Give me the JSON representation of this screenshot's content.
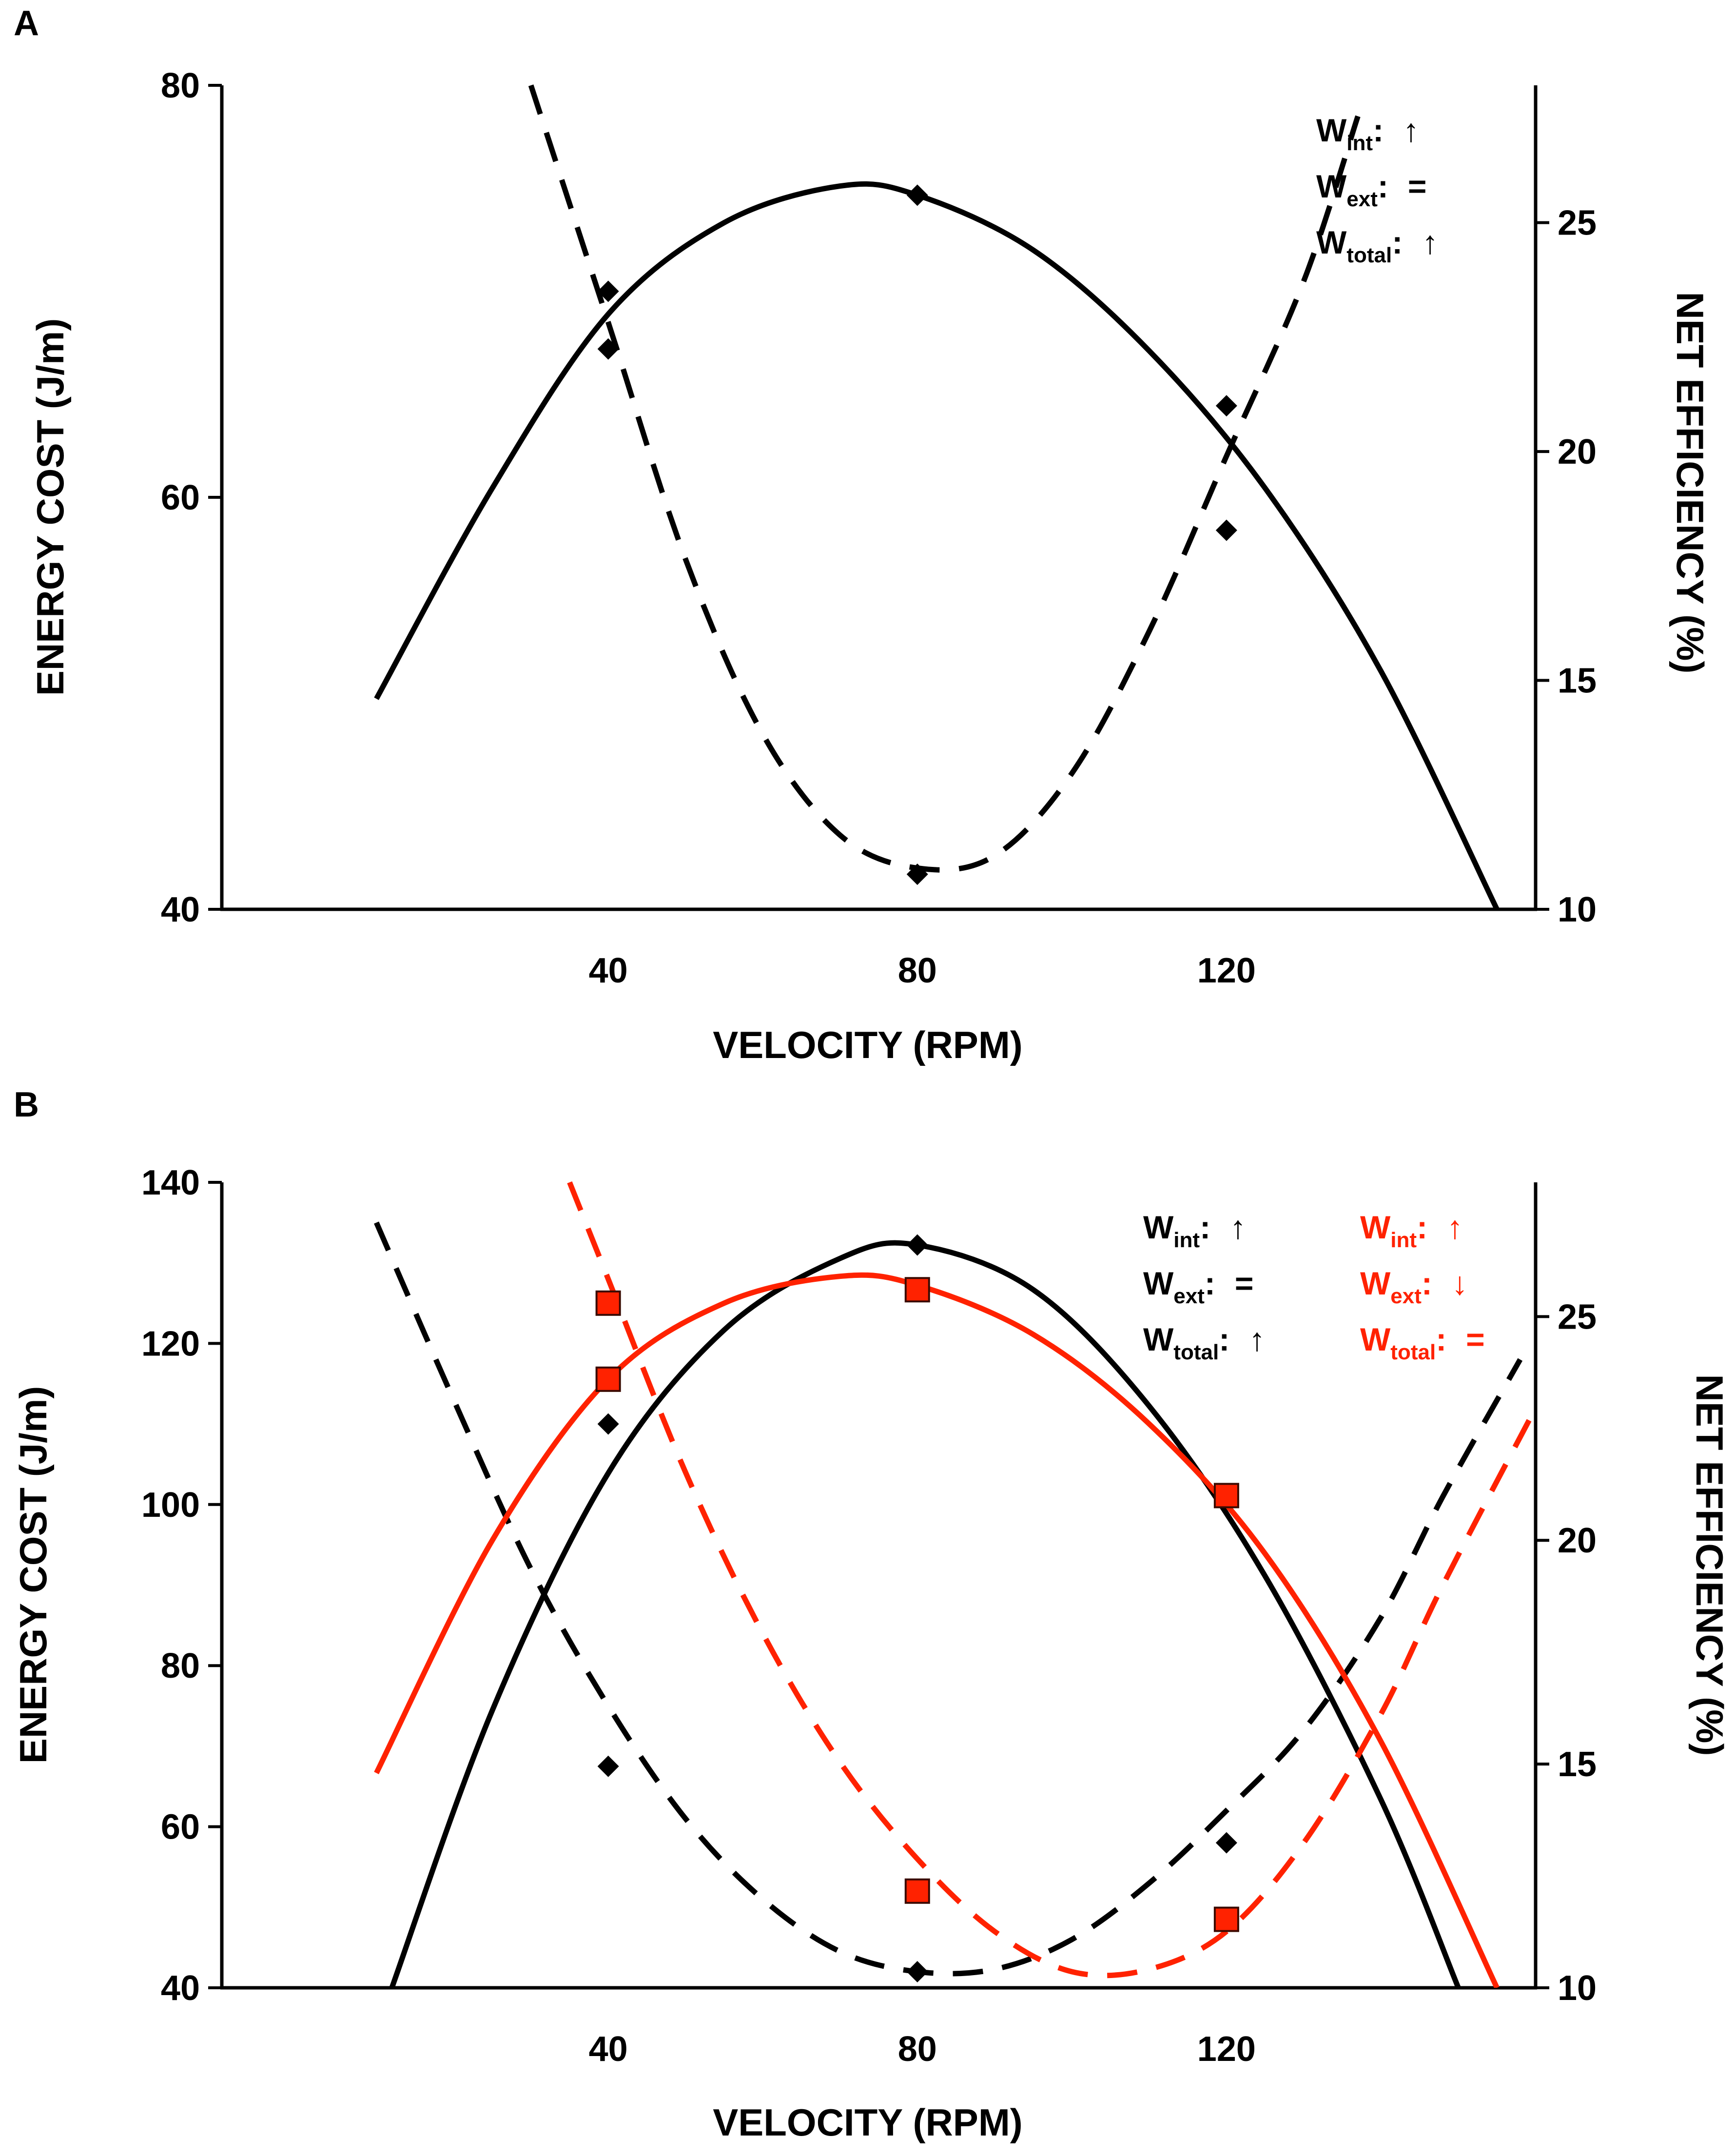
{
  "figure": {
    "panels": [
      "A",
      "B"
    ]
  },
  "chart_data": [
    {
      "panel": "A",
      "type": "line",
      "xlabel": "VELOCITY (RPM)",
      "ylabel": "ENERGY COST (J/m)",
      "y2label": "NET EFFICIENCY (%)",
      "xlim": [
        -10,
        160
      ],
      "ylim": [
        40,
        80
      ],
      "y2lim": [
        10,
        28
      ],
      "xticks": [
        40,
        80,
        120
      ],
      "yticks": [
        40,
        60,
        80
      ],
      "y2ticks": [
        10,
        15,
        20,
        25
      ],
      "series": [
        {
          "name": "Net efficiency",
          "axis": "right",
          "color": "#000000",
          "dash": "solid",
          "markers": "diamond",
          "points": [
            [
              40,
              23.5
            ],
            [
              80,
              25.6
            ],
            [
              120,
              21.0
            ]
          ],
          "curve": [
            [
              10,
              14.6
            ],
            [
              25,
              19.2
            ],
            [
              40,
              23.0
            ],
            [
              55,
              25.0
            ],
            [
              70,
              25.8
            ],
            [
              80,
              25.6
            ],
            [
              95,
              24.4
            ],
            [
              110,
              22.2
            ],
            [
              125,
              19.2
            ],
            [
              140,
              15.2
            ],
            [
              155,
              10.0
            ]
          ]
        },
        {
          "name": "Energy cost",
          "axis": "left",
          "color": "#000000",
          "dash": "dashed",
          "markers": "diamond",
          "points": [
            [
              40,
              67.2
            ],
            [
              80,
              41.7
            ],
            [
              120,
              58.4
            ]
          ],
          "curve": [
            [
              30,
              80.0
            ],
            [
              40,
              68.5
            ],
            [
              50,
              57.0
            ],
            [
              60,
              48.5
            ],
            [
              70,
              43.6
            ],
            [
              80,
              42.0
            ],
            [
              90,
              42.6
            ],
            [
              100,
              46.6
            ],
            [
              110,
              53.5
            ],
            [
              120,
              62.0
            ],
            [
              130,
              70.5
            ],
            [
              137,
              78.5
            ]
          ]
        }
      ],
      "annotations": [
        {
          "base": "W",
          "sub": "int",
          "sep": ":",
          "value": "↑",
          "color": "#000000"
        },
        {
          "base": "W",
          "sub": "ext",
          "sep": ":",
          "value": "=",
          "color": "#000000"
        },
        {
          "base": "W",
          "sub": "total",
          "sep": ":",
          "value": "↑",
          "color": "#000000"
        }
      ]
    },
    {
      "panel": "B",
      "type": "line",
      "xlabel": "VELOCITY (RPM)",
      "ylabel": "ENERGY COST (J/m)",
      "y2label": "NET EFFICIENCY (%)",
      "xlim": [
        -10,
        160
      ],
      "ylim": [
        40,
        140
      ],
      "y2lim": [
        10,
        28
      ],
      "xticks": [
        40,
        80,
        120
      ],
      "yticks": [
        40,
        60,
        80,
        100,
        120,
        140
      ],
      "y2ticks": [
        10,
        15,
        20,
        25
      ],
      "series": [
        {
          "name": "Net efficiency",
          "axis": "right",
          "color": "#000000",
          "dash": "solid",
          "markers": "diamond",
          "points": [
            [
              40,
              22.6
            ],
            [
              80,
              26.6
            ],
            [
              120,
              21.0
            ]
          ],
          "curve": [
            [
              12,
              10.0
            ],
            [
              25,
              16.2
            ],
            [
              40,
              21.5
            ],
            [
              55,
              24.7
            ],
            [
              70,
              26.3
            ],
            [
              80,
              26.6
            ],
            [
              95,
              25.6
            ],
            [
              110,
              23.0
            ],
            [
              125,
              19.2
            ],
            [
              140,
              14.2
            ],
            [
              150,
              10.0
            ]
          ]
        },
        {
          "name": "Energy cost",
          "axis": "left",
          "color": "#000000",
          "dash": "dashed",
          "markers": "diamond",
          "points": [
            [
              40,
              67.5
            ],
            [
              80,
              42.0
            ],
            [
              120,
              58.0
            ]
          ],
          "curve": [
            [
              10,
              135.0
            ],
            [
              20,
              113.0
            ],
            [
              30,
              92.0
            ],
            [
              40,
              75.0
            ],
            [
              50,
              61.0
            ],
            [
              60,
              51.0
            ],
            [
              70,
              44.5
            ],
            [
              80,
              42.0
            ],
            [
              90,
              42.3
            ],
            [
              100,
              46.0
            ],
            [
              110,
              53.0
            ],
            [
              120,
              62.0
            ],
            [
              130,
              72.0
            ],
            [
              140,
              86.0
            ],
            [
              148,
              101.0
            ],
            [
              158,
              118.0
            ]
          ]
        },
        {
          "name": "Net efficiency",
          "axis": "right",
          "color": "#ff2200",
          "dash": "solid",
          "markers": "square",
          "points": [
            [
              40,
              23.6
            ],
            [
              80,
              25.6
            ],
            [
              120,
              21.0
            ]
          ],
          "curve": [
            [
              10,
              14.8
            ],
            [
              25,
              20.0
            ],
            [
              40,
              23.6
            ],
            [
              55,
              25.3
            ],
            [
              70,
              25.9
            ],
            [
              80,
              25.7
            ],
            [
              95,
              24.6
            ],
            [
              110,
              22.6
            ],
            [
              125,
              19.7
            ],
            [
              140,
              15.5
            ],
            [
              155,
              10.0
            ]
          ]
        },
        {
          "name": "Energy cost",
          "axis": "left",
          "color": "#ff2200",
          "dash": "dashed",
          "markers": "square",
          "points": [
            [
              40,
              125.0
            ],
            [
              80,
              52.0
            ],
            [
              120,
              48.5
            ]
          ],
          "curve": [
            [
              35,
              140.0
            ],
            [
              40,
              128.0
            ],
            [
              50,
              104.0
            ],
            [
              60,
              84.0
            ],
            [
              70,
              68.0
            ],
            [
              80,
              56.0
            ],
            [
              90,
              47.0
            ],
            [
              100,
              42.0
            ],
            [
              110,
              42.3
            ],
            [
              120,
              47.0
            ],
            [
              130,
              58.0
            ],
            [
              140,
              74.0
            ],
            [
              148,
              90.0
            ],
            [
              160,
              112.0
            ]
          ]
        }
      ],
      "annotations": [
        {
          "base": "W",
          "sub": "int",
          "sep": ":",
          "value": "↑",
          "color": "#000000"
        },
        {
          "base": "W",
          "sub": "ext",
          "sep": ":",
          "value": "=",
          "color": "#000000"
        },
        {
          "base": "W",
          "sub": "total",
          "sep": ":",
          "value": "↑",
          "color": "#000000"
        },
        {
          "base": "W",
          "sub": "int",
          "sep": ":",
          "value": "↑",
          "color": "#ff2200"
        },
        {
          "base": "W",
          "sub": "ext",
          "sep": ":",
          "value": "↓",
          "color": "#ff2200"
        },
        {
          "base": "W",
          "sub": "total",
          "sep": ":",
          "value": "=",
          "color": "#ff2200"
        }
      ]
    }
  ]
}
